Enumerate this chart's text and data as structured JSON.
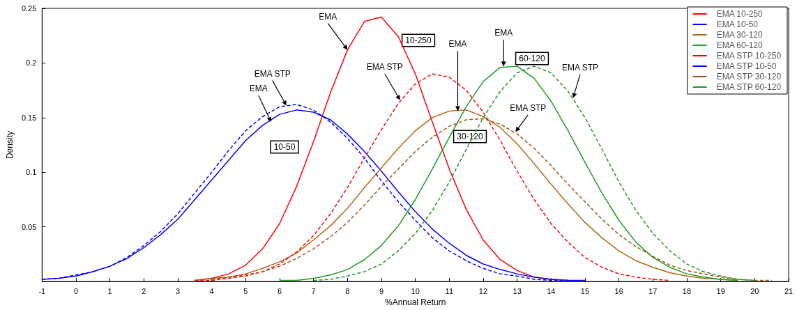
{
  "chart_data": {
    "type": "line",
    "xlabel": "%Annual Return",
    "ylabel": "Density",
    "x": [
      -1,
      -0.5,
      0,
      0.5,
      1,
      1.5,
      2,
      2.5,
      3,
      3.5,
      4,
      4.5,
      5,
      5.5,
      6,
      6.5,
      7,
      7.5,
      8,
      8.5,
      9,
      9.5,
      10,
      10.5,
      11,
      11.5,
      12,
      12.5,
      13,
      13.5,
      14,
      14.5,
      15,
      15.5,
      16,
      16.5,
      17,
      17.5,
      18,
      18.5,
      19,
      19.5,
      20,
      20.5
    ],
    "series": [
      {
        "name": "EMA 10-250",
        "color": "#ff0000",
        "line_style": "solid",
        "values": [
          null,
          null,
          null,
          null,
          null,
          null,
          null,
          null,
          null,
          0.001,
          0.003,
          0.007,
          0.015,
          0.03,
          0.053,
          0.087,
          0.128,
          0.173,
          0.212,
          0.238,
          0.242,
          0.224,
          0.19,
          0.146,
          0.103,
          0.066,
          0.038,
          0.02,
          0.01,
          0.004,
          0.002,
          0.001,
          null,
          null,
          null,
          null,
          null,
          null,
          null,
          null,
          null,
          null,
          null,
          null
        ]
      },
      {
        "name": "EMA 10-50",
        "color": "#0000ff",
        "line_style": "solid",
        "values": [
          0.002,
          0.003,
          0.005,
          0.009,
          0.014,
          0.021,
          0.031,
          0.043,
          0.057,
          0.075,
          0.093,
          0.111,
          0.129,
          0.143,
          0.153,
          0.157,
          0.155,
          0.148,
          0.135,
          0.119,
          0.101,
          0.082,
          0.064,
          0.048,
          0.035,
          0.024,
          0.016,
          0.011,
          0.007,
          0.004,
          0.002,
          0.001,
          0.001,
          null,
          null,
          null,
          null,
          null,
          null,
          null,
          null,
          null,
          null,
          null
        ]
      },
      {
        "name": "EMA 30-120",
        "color": "#b8650f",
        "line_style": "solid",
        "values": [
          null,
          null,
          null,
          null,
          null,
          null,
          null,
          null,
          null,
          0.001,
          0.003,
          0.004,
          0.007,
          0.012,
          0.018,
          0.026,
          0.038,
          0.051,
          0.067,
          0.086,
          0.104,
          0.122,
          0.138,
          0.15,
          0.156,
          0.157,
          0.151,
          0.141,
          0.126,
          0.108,
          0.089,
          0.071,
          0.054,
          0.04,
          0.028,
          0.019,
          0.013,
          0.008,
          0.005,
          0.003,
          0.002,
          0.001,
          null,
          null
        ]
      },
      {
        "name": "EMA 60-120",
        "color": "#1f9a1f",
        "line_style": "solid",
        "values": [
          null,
          null,
          null,
          null,
          null,
          null,
          null,
          null,
          null,
          null,
          null,
          null,
          null,
          null,
          0.001,
          0.001,
          0.003,
          0.006,
          0.011,
          0.02,
          0.033,
          0.051,
          0.075,
          0.103,
          0.132,
          0.16,
          0.183,
          0.196,
          0.197,
          0.186,
          0.165,
          0.138,
          0.109,
          0.081,
          0.056,
          0.036,
          0.022,
          0.013,
          0.007,
          0.004,
          0.002,
          0.001,
          null,
          null
        ]
      },
      {
        "name": "EMA STP 10-250",
        "color": "#ff0000",
        "line_style": "dashed",
        "values": [
          null,
          null,
          null,
          null,
          null,
          null,
          null,
          null,
          null,
          0.001,
          0.001,
          0.003,
          0.005,
          0.009,
          0.016,
          0.027,
          0.042,
          0.062,
          0.086,
          0.113,
          0.139,
          0.163,
          0.181,
          0.19,
          0.187,
          0.175,
          0.155,
          0.129,
          0.101,
          0.075,
          0.053,
          0.036,
          0.022,
          0.013,
          0.007,
          0.004,
          0.002,
          0.001,
          null,
          null,
          null,
          null,
          null,
          null
        ]
      },
      {
        "name": "EMA STP 10-50",
        "color": "#0000ff",
        "line_style": "dashed",
        "values": [
          0.002,
          0.003,
          0.006,
          0.009,
          0.014,
          0.022,
          0.033,
          0.046,
          0.062,
          0.081,
          0.1,
          0.12,
          0.138,
          0.151,
          0.16,
          0.162,
          0.157,
          0.146,
          0.131,
          0.113,
          0.092,
          0.073,
          0.056,
          0.04,
          0.028,
          0.019,
          0.012,
          0.007,
          0.005,
          0.002,
          0.001,
          0.001,
          null,
          null,
          null,
          null,
          null,
          null,
          null,
          null,
          null,
          null,
          null,
          null
        ]
      },
      {
        "name": "EMA STP 30-120",
        "color": "#a0521a",
        "line_style": "dashed",
        "values": [
          null,
          null,
          null,
          null,
          null,
          null,
          null,
          null,
          null,
          null,
          0.002,
          0.004,
          0.006,
          0.009,
          0.014,
          0.021,
          0.03,
          0.041,
          0.054,
          0.07,
          0.087,
          0.103,
          0.119,
          0.132,
          0.142,
          0.148,
          0.149,
          0.144,
          0.135,
          0.122,
          0.106,
          0.089,
          0.073,
          0.057,
          0.043,
          0.032,
          0.023,
          0.015,
          0.01,
          0.007,
          0.004,
          0.002,
          0.001,
          0.001
        ]
      },
      {
        "name": "EMA STP 60-120",
        "color": "#1f9a1f",
        "line_style": "dashed",
        "values": [
          null,
          null,
          null,
          null,
          null,
          null,
          null,
          null,
          null,
          null,
          null,
          null,
          null,
          null,
          null,
          null,
          0.001,
          0.002,
          0.005,
          0.009,
          0.016,
          0.028,
          0.044,
          0.065,
          0.091,
          0.121,
          0.15,
          0.174,
          0.191,
          0.197,
          0.191,
          0.174,
          0.15,
          0.121,
          0.091,
          0.065,
          0.044,
          0.028,
          0.016,
          0.009,
          0.005,
          0.002,
          0.001,
          null
        ]
      }
    ],
    "annotations": [
      {
        "text": "EMA",
        "x": 8.0,
        "y": 0.212
      },
      "10-250",
      {
        "text": "EMA STP",
        "x": 9.55,
        "y": 0.166
      },
      {
        "text": "EMA",
        "x": 11.25,
        "y": 0.156
      },
      "30-120",
      {
        "text": "EMA STP",
        "x": 12.95,
        "y": 0.137
      },
      {
        "text": "EMA",
        "x": 12.6,
        "y": 0.197
      },
      "60-120",
      {
        "text": "EMA STP",
        "x": 14.65,
        "y": 0.168
      },
      {
        "text": "EMA STP",
        "x": 6.2,
        "y": 0.161
      },
      {
        "text": "EMA",
        "x": 5.75,
        "y": 0.146
      },
      "10-50"
    ],
    "xlim": [
      -1,
      21
    ],
    "xticks": [
      -1,
      0,
      1,
      2,
      3,
      4,
      5,
      6,
      7,
      8,
      9,
      10,
      11,
      12,
      13,
      14,
      15,
      16,
      17,
      18,
      19,
      20,
      21
    ],
    "ylim": [
      0,
      0.25
    ],
    "yticks": [
      0.05,
      0.1,
      0.15,
      0.2,
      0.25
    ],
    "legend": "top right",
    "marker": "none"
  }
}
